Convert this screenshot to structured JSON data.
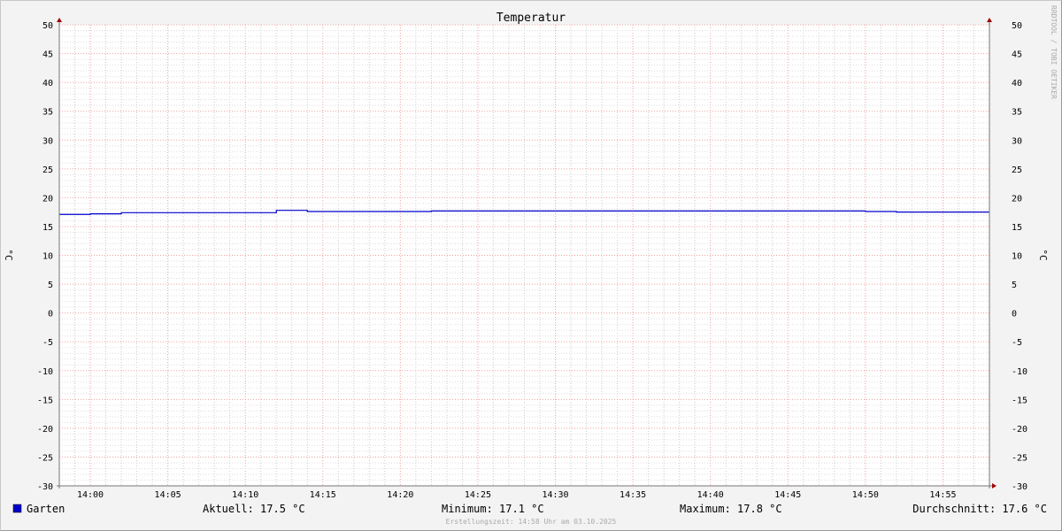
{
  "chart_data": {
    "type": "line",
    "title": "Temperatur",
    "ylabel": "°C",
    "ylabel_right": "°C",
    "ylim": [
      -30,
      50
    ],
    "yticks": [
      50,
      45,
      40,
      35,
      30,
      25,
      20,
      15,
      10,
      5,
      0,
      -5,
      -10,
      -15,
      -20,
      -25,
      -30
    ],
    "xlim": [
      "13:58",
      "14:58"
    ],
    "xticks": [
      "14:00",
      "14:05",
      "14:10",
      "14:15",
      "14:20",
      "14:25",
      "14:30",
      "14:35",
      "14:40",
      "14:45",
      "14:50",
      "14:55"
    ],
    "grid": true,
    "watermark": "RRDTOOL / TOBI OETIKER",
    "series": [
      {
        "name": "Garten",
        "color": "#0000cc",
        "step": true,
        "x": [
          "13:58",
          "14:00",
          "14:02",
          "14:12",
          "14:14",
          "14:22",
          "14:50",
          "14:52",
          "14:58"
        ],
        "y": [
          17.1,
          17.2,
          17.4,
          17.8,
          17.6,
          17.7,
          17.6,
          17.5,
          17.5
        ]
      }
    ],
    "legend": {
      "series_label": "Garten",
      "current": "Aktuell: 17.5 °C",
      "minimum": "Minimum: 17.1 °C",
      "maximum": "Maximum: 17.8 °C",
      "average": "Durchschnitt: 17.6 °C"
    },
    "footer": "Erstellungszeit: 14:58 Uhr am 03.10.2025"
  }
}
